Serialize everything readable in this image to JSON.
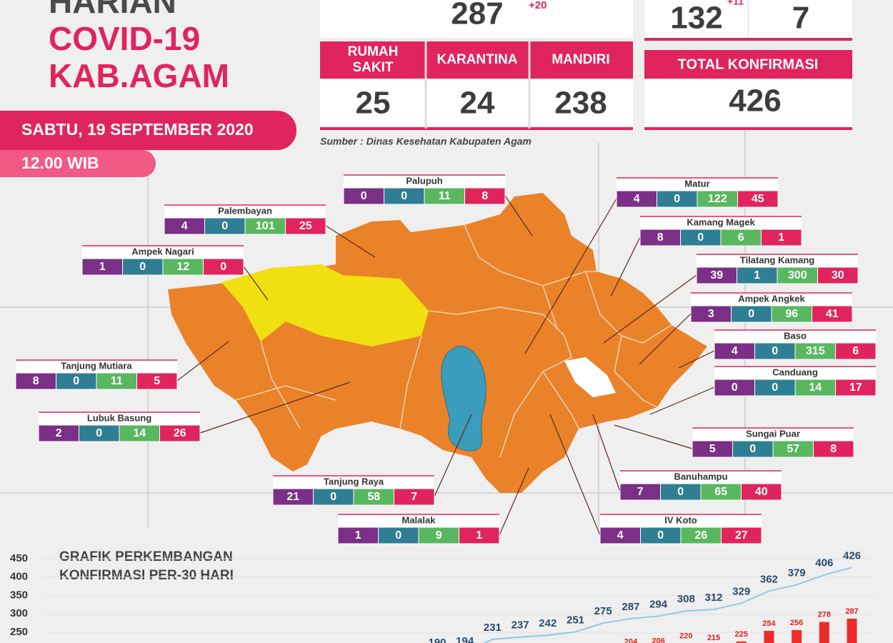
{
  "header": {
    "title_lines": [
      "HARIAN",
      "COVID-19",
      "KAB.AGAM"
    ],
    "date": "SABTU, 19 SEPTEMBER 2020",
    "time": "12.00 WIB"
  },
  "stats": {
    "active": {
      "value": 287,
      "change": "+20"
    },
    "columns": [
      {
        "label": "RUMAH SAKIT",
        "value": 25
      },
      {
        "label": "KARANTINA",
        "value": 24
      },
      {
        "label": "MANDIRI",
        "value": 238
      }
    ],
    "recovered": {
      "value": 132,
      "change": "+11"
    },
    "deaths": {
      "value": 7
    },
    "total": {
      "label": "TOTAL KONFIRMASI",
      "value": 426
    }
  },
  "source": "Sumber : Dinas Kesehatan Kabupaten Agam",
  "districts": [
    {
      "name": "Palupuh",
      "values": [
        0,
        0,
        11,
        8
      ]
    },
    {
      "name": "Palembayan",
      "values": [
        4,
        0,
        101,
        25
      ]
    },
    {
      "name": "Ampek Nagari",
      "values": [
        1,
        0,
        12,
        0
      ]
    },
    {
      "name": "Tanjung Mutiara",
      "values": [
        8,
        0,
        11,
        5
      ]
    },
    {
      "name": "Lubuk Basung",
      "values": [
        2,
        0,
        14,
        26
      ]
    },
    {
      "name": "Tanjung Raya",
      "values": [
        21,
        0,
        58,
        7
      ]
    },
    {
      "name": "Malalak",
      "values": [
        1,
        0,
        9,
        1
      ]
    },
    {
      "name": "Matur",
      "values": [
        4,
        0,
        122,
        45
      ]
    },
    {
      "name": "Kamang Magek",
      "values": [
        8,
        0,
        6,
        1
      ]
    },
    {
      "name": "Tilatang Kamang",
      "values": [
        39,
        1,
        300,
        30
      ]
    },
    {
      "name": "Ampek Angkek",
      "values": [
        3,
        0,
        96,
        41
      ]
    },
    {
      "name": "Baso",
      "values": [
        4,
        0,
        315,
        6
      ]
    },
    {
      "name": "Canduang",
      "values": [
        0,
        0,
        14,
        17
      ]
    },
    {
      "name": "Sungai Puar",
      "values": [
        5,
        0,
        57,
        8
      ]
    },
    {
      "name": "Banuhampu",
      "values": [
        7,
        0,
        65,
        40
      ]
    },
    {
      "name": "IV Koto",
      "values": [
        4,
        0,
        26,
        27
      ]
    }
  ],
  "trend": {
    "title_lines": [
      "GRAFIK PERKEMBANGAN",
      "KONFIRMASI PER-30 HARI"
    ],
    "yticks": [
      450,
      400,
      350,
      300,
      250
    ],
    "line_values": [
      190,
      194,
      231,
      237,
      242,
      251,
      275,
      287,
      294,
      308,
      312,
      329,
      362,
      379,
      406,
      426
    ],
    "bar_values": [
      204,
      206,
      220,
      215,
      225,
      254,
      256,
      278,
      287
    ]
  }
}
